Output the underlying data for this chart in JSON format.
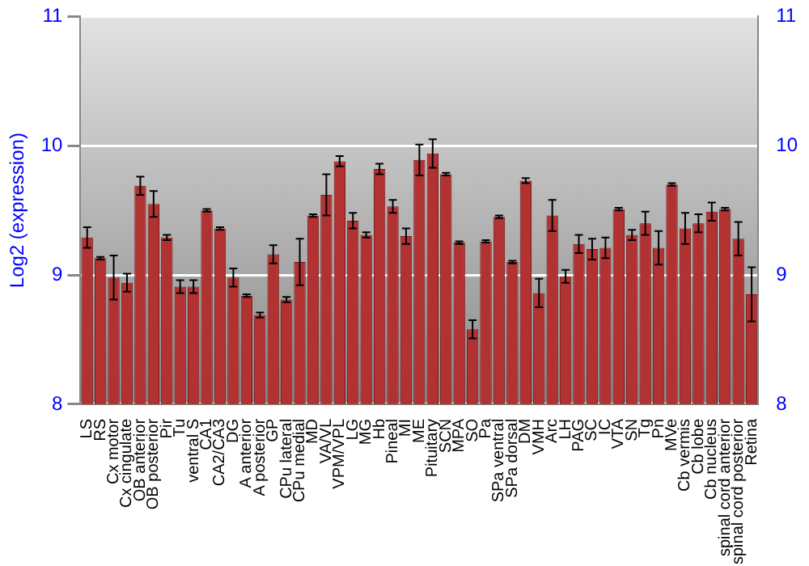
{
  "chart_data": {
    "type": "bar",
    "ylabel": "Log2 (expression)",
    "categories": [
      "LS",
      "RS",
      "Cx motor",
      "Cx cingulate",
      "OB anterior",
      "OB posterior",
      "Pir",
      "Tu",
      "ventral S",
      "CA1",
      "CA2/CA3",
      "DG",
      "A anterior",
      "A posterior",
      "GP",
      "CPu lateral",
      "CPu medial",
      "MD",
      "VA/VL",
      "VPM/VPL",
      "LG",
      "MG",
      "Hb",
      "Pineal",
      "MI",
      "ME",
      "Pituitary",
      "SCN",
      "MPA",
      "SO",
      "Pa",
      "SPa ventral",
      "SPa dorsal",
      "DM",
      "VMH",
      "Arc",
      "LH",
      "PAG",
      "SC",
      "IC",
      "VTA",
      "SN",
      "Tg",
      "Pn",
      "MVe",
      "Cb vermis",
      "Cb lobe",
      "Cb nucleus",
      "spinal cord anterior",
      "spinal cord posterior",
      "Retina"
    ],
    "values": [
      9.29,
      9.13,
      8.98,
      8.94,
      9.69,
      9.55,
      9.29,
      8.91,
      8.91,
      9.5,
      9.36,
      8.98,
      8.84,
      8.69,
      9.16,
      8.81,
      9.1,
      9.46,
      9.62,
      9.88,
      9.42,
      9.31,
      9.82,
      9.53,
      9.3,
      9.89,
      9.94,
      9.78,
      9.25,
      8.58,
      9.26,
      9.45,
      9.1,
      9.73,
      8.86,
      9.46,
      8.99,
      9.24,
      9.2,
      9.21,
      9.51,
      9.31,
      9.4,
      9.21,
      9.7,
      9.36,
      9.4,
      9.49,
      9.51,
      9.28,
      8.85
    ],
    "errors": [
      0.08,
      0.01,
      0.17,
      0.07,
      0.07,
      0.1,
      0.02,
      0.05,
      0.05,
      0.01,
      0.01,
      0.07,
      0.01,
      0.02,
      0.07,
      0.02,
      0.18,
      0.01,
      0.16,
      0.04,
      0.06,
      0.02,
      0.04,
      0.05,
      0.06,
      0.12,
      0.11,
      0.01,
      0.01,
      0.07,
      0.01,
      0.01,
      0.01,
      0.02,
      0.11,
      0.12,
      0.05,
      0.07,
      0.08,
      0.08,
      0.01,
      0.04,
      0.09,
      0.13,
      0.01,
      0.12,
      0.07,
      0.07,
      0.01,
      0.13,
      0.21
    ],
    "color": "#b23232",
    "ylim": [
      8,
      11
    ],
    "yticks": [
      8,
      9,
      10,
      11
    ],
    "y2lim": [
      8,
      11
    ],
    "y2ticks": [
      8,
      9,
      10,
      11
    ],
    "grid": "y",
    "legend": false
  }
}
